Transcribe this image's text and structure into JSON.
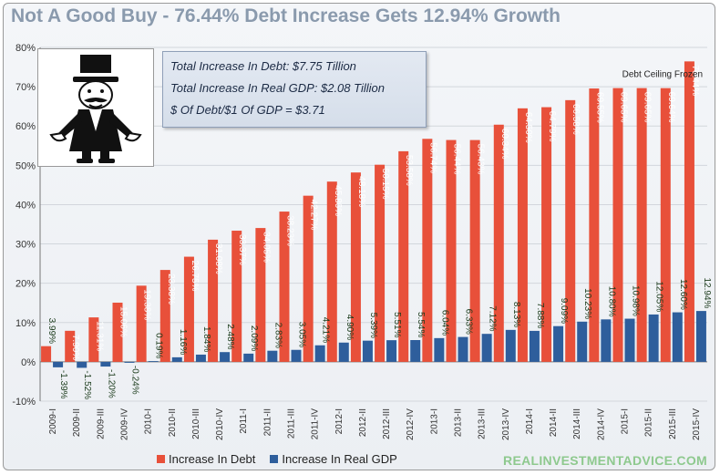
{
  "title": "Not A Good Buy - 76.44% Debt Increase Gets 12.94% Growth",
  "info_box": {
    "line1": "Total Increase In Debt:  $7.75 Tillion",
    "line2": "Total Increase In Real GDP:  $2.08 Tillion",
    "line3": "$ Of Debt/$1 Of GDP = $3.71"
  },
  "annotation": "Debt Ceiling Frozen",
  "source": "REALINVESTMENTADVICE.COM",
  "colors": {
    "debt": "#e8503a",
    "gdp": "#2e5e9c"
  },
  "chart_data": {
    "type": "bar",
    "title": "Not A Good Buy - 76.44% Debt Increase Gets 12.94% Growth",
    "ylim": [
      -10,
      80
    ],
    "yticks": [
      "-10%",
      "0%",
      "10%",
      "20%",
      "30%",
      "40%",
      "50%",
      "60%",
      "70%",
      "80%"
    ],
    "ytick_values": [
      -10,
      0,
      10,
      20,
      30,
      40,
      50,
      60,
      70,
      80
    ],
    "categories": [
      "2009-I",
      "2009-II",
      "2009-III",
      "2009-IV",
      "2010-I",
      "2010-II",
      "2010-III",
      "2010-IV",
      "2011-I",
      "2011-II",
      "2011-III",
      "2011-IV",
      "2012-I",
      "2012-II",
      "2012-III",
      "2012-IV",
      "2013-I",
      "2013-II",
      "2013-III",
      "2013-IV",
      "2014-I",
      "2014-II",
      "2014-III",
      "2014-IV",
      "2015-I",
      "2015-II",
      "2015-III",
      "2015-IV"
    ],
    "series": [
      {
        "name": "Increase In Debt",
        "values": [
          3.99,
          7.9,
          11.31,
          15.06,
          19.38,
          23.38,
          26.75,
          31.08,
          33.37,
          34.05,
          38.23,
          42.27,
          45.86,
          48.18,
          50.15,
          53.58,
          56.74,
          56.44,
          56.43,
          60.34,
          64.5,
          64.79,
          66.58,
          69.55,
          69.65,
          69.65,
          69.64,
          76.44
        ],
        "labels": [
          "3.99%",
          "7.90%",
          "11.31%",
          "15.06%",
          "19.38%",
          "23.38%",
          "26.75%",
          "31.08%",
          "33.37%",
          "34.05%",
          "38.23%",
          "42.27%",
          "45.86%",
          "48.18%",
          "50.15%",
          "53.58%",
          "56.74%",
          "56.44%",
          "56.43%",
          "60.34%",
          "64.50%",
          "64.79%",
          "66.58%",
          "69.55%",
          "69.65%",
          "69.65%",
          "69.64%",
          "76.44%"
        ]
      },
      {
        "name": "Increase In Real GDP",
        "values": [
          -1.39,
          -1.52,
          -1.2,
          -0.24,
          0.19,
          1.16,
          1.84,
          2.48,
          2.09,
          2.83,
          3.05,
          4.21,
          4.9,
          5.39,
          5.51,
          5.54,
          6.04,
          6.33,
          7.12,
          8.13,
          7.88,
          9.09,
          10.23,
          10.8,
          10.98,
          12.05,
          12.6,
          12.94
        ],
        "labels": [
          "-1.39%",
          "-1.52%",
          "-1.20%",
          "-0.24%",
          "0.19%",
          "1.16%",
          "1.84%",
          "2.48%",
          "2.09%",
          "2.83%",
          "3.05%",
          "4.21%",
          "4.90%",
          "5.39%",
          "5.51%",
          "5.54%",
          "6.04%",
          "6.33%",
          "7.12%",
          "8.13%",
          "7.88%",
          "9.09%",
          "10.23%",
          "10.80%",
          "10.98%",
          "12.05%",
          "12.60%",
          "12.94%"
        ]
      }
    ],
    "legend": [
      "Increase In Debt",
      "Increase In Real GDP"
    ],
    "legend_position": "bottom",
    "grid": true
  }
}
